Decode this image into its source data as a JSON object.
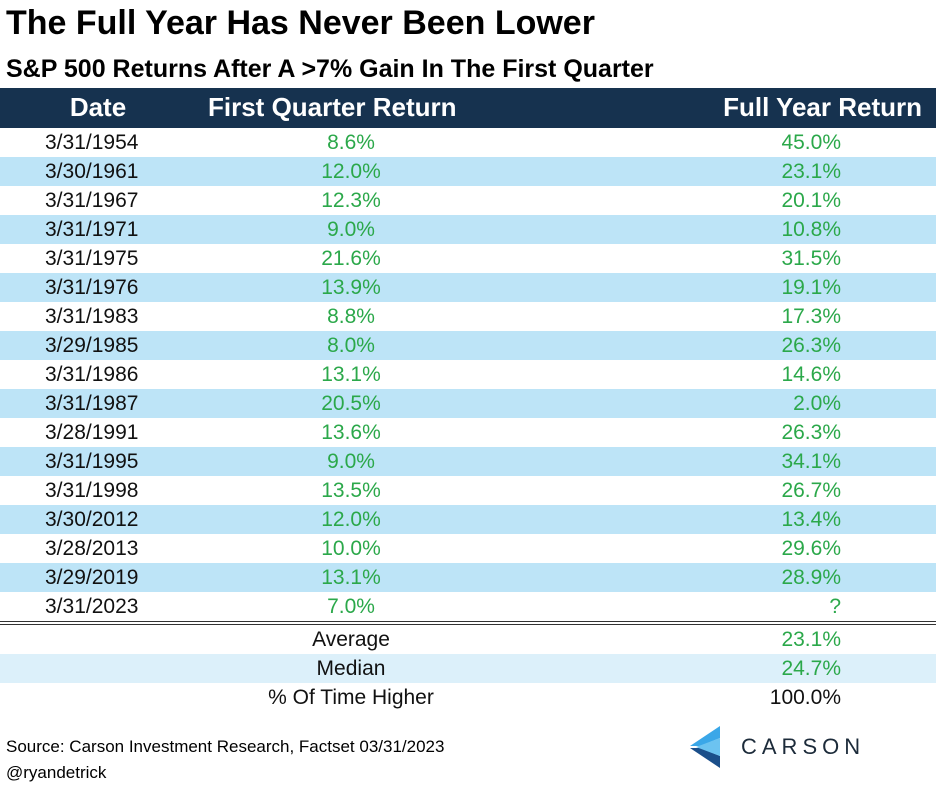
{
  "chart_data": {
    "type": "table",
    "title": "The Full Year Has Never Been Lower",
    "subtitle": "S&P 500 Returns After A >7% Gain In The First Quarter",
    "columns": [
      "Date",
      "First Quarter Return",
      "Full Year Return"
    ],
    "rows": [
      [
        "3/31/1954",
        "8.6%",
        "45.0%"
      ],
      [
        "3/30/1961",
        "12.0%",
        "23.1%"
      ],
      [
        "3/31/1967",
        "12.3%",
        "20.1%"
      ],
      [
        "3/31/1971",
        "9.0%",
        "10.8%"
      ],
      [
        "3/31/1975",
        "21.6%",
        "31.5%"
      ],
      [
        "3/31/1976",
        "13.9%",
        "19.1%"
      ],
      [
        "3/31/1983",
        "8.8%",
        "17.3%"
      ],
      [
        "3/29/1985",
        "8.0%",
        "26.3%"
      ],
      [
        "3/31/1986",
        "13.1%",
        "14.6%"
      ],
      [
        "3/31/1987",
        "20.5%",
        "2.0%"
      ],
      [
        "3/28/1991",
        "13.6%",
        "26.3%"
      ],
      [
        "3/31/1995",
        "9.0%",
        "34.1%"
      ],
      [
        "3/31/1998",
        "13.5%",
        "26.7%"
      ],
      [
        "3/30/2012",
        "12.0%",
        "13.4%"
      ],
      [
        "3/28/2013",
        "10.0%",
        "29.6%"
      ],
      [
        "3/29/2019",
        "13.1%",
        "28.9%"
      ],
      [
        "3/31/2023",
        "7.0%",
        "?"
      ]
    ],
    "summary": [
      {
        "label": "Average",
        "value": "23.1%"
      },
      {
        "label": "Median",
        "value": "24.7%"
      },
      {
        "label": "% Of Time Higher",
        "value": "100.0%"
      }
    ]
  },
  "footer": {
    "source": "Source: Carson Investment Research, Factset  03/31/2023",
    "handle": "@ryandetrick",
    "logo_text": "CARSON",
    "logo_icon": "carson-chevron-logo"
  },
  "colors": {
    "header_bg": "#16324f",
    "row_shade": "#bde4f7",
    "summary_shade": "#dcf0fa",
    "positive_text": "#2ba84a",
    "logo_blue": "#3aa7e8"
  }
}
